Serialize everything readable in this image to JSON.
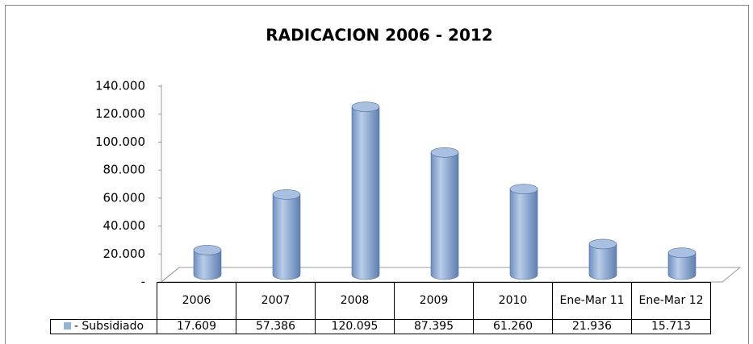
{
  "chart_data": {
    "type": "bar3d",
    "title": "RADICACION 2006 - 2012",
    "categories": [
      "2006",
      "2007",
      "2008",
      "2009",
      "2010",
      "Ene-Mar 11",
      "Ene-Mar 12"
    ],
    "series": [
      {
        "name": "- Subsidiado",
        "color": "#95b3d7",
        "values": [
          17609,
          57386,
          120095,
          87395,
          61260,
          21936,
          15713
        ],
        "value_labels": [
          "17.609",
          "57.386",
          "120.095",
          "87.395",
          "61.260",
          "21.936",
          "15.713"
        ]
      }
    ],
    "ylim": [
      0,
      140000
    ],
    "yticks": [
      {
        "value": 0,
        "label": "-"
      },
      {
        "value": 20000,
        "label": "20.000"
      },
      {
        "value": 40000,
        "label": "40.000"
      },
      {
        "value": 60000,
        "label": "60.000"
      },
      {
        "value": 80000,
        "label": "80.000"
      },
      {
        "value": 100000,
        "label": "100.000"
      },
      {
        "value": 120000,
        "label": "120.000"
      },
      {
        "value": 140000,
        "label": "140.000"
      }
    ],
    "grid": false
  }
}
